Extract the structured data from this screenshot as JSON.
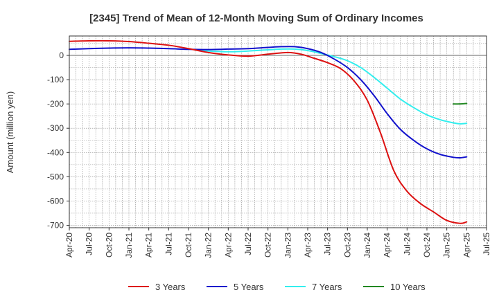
{
  "chart_data": {
    "type": "line",
    "title": "[2345]  Trend of Mean of 12-Month Moving Sum of Ordinary Incomes",
    "xlabel": "",
    "ylabel": "Amount (million yen)",
    "ylim": [
      -710,
      80
    ],
    "yticks": [
      0,
      -100,
      -200,
      -300,
      -400,
      -500,
      -600,
      -700
    ],
    "xlim": [
      0,
      63
    ],
    "xticks": [
      {
        "label": "Apr-20",
        "x": 0
      },
      {
        "label": "Jul-20",
        "x": 3
      },
      {
        "label": "Oct-20",
        "x": 6
      },
      {
        "label": "Jan-21",
        "x": 9
      },
      {
        "label": "Apr-21",
        "x": 12
      },
      {
        "label": "Jul-21",
        "x": 15
      },
      {
        "label": "Oct-21",
        "x": 18
      },
      {
        "label": "Jan-22",
        "x": 21
      },
      {
        "label": "Apr-22",
        "x": 24
      },
      {
        "label": "Jul-22",
        "x": 27
      },
      {
        "label": "Oct-22",
        "x": 30
      },
      {
        "label": "Jan-23",
        "x": 33
      },
      {
        "label": "Apr-23",
        "x": 36
      },
      {
        "label": "Jul-23",
        "x": 39
      },
      {
        "label": "Oct-23",
        "x": 42
      },
      {
        "label": "Jan-24",
        "x": 45
      },
      {
        "label": "Apr-24",
        "x": 48
      },
      {
        "label": "Jul-24",
        "x": 51
      },
      {
        "label": "Oct-24",
        "x": 54
      },
      {
        "label": "Jan-25",
        "x": 57
      },
      {
        "label": "Apr-25",
        "x": 60
      },
      {
        "label": "Jul-25",
        "x": 63
      }
    ],
    "grid": true,
    "legend_position": "bottom",
    "series": [
      {
        "name": "3 Years",
        "color": "#dd1111",
        "points": [
          [
            0,
            58
          ],
          [
            3,
            60
          ],
          [
            6,
            60
          ],
          [
            9,
            57
          ],
          [
            12,
            50
          ],
          [
            15,
            42
          ],
          [
            18,
            28
          ],
          [
            21,
            12
          ],
          [
            24,
            2
          ],
          [
            27,
            -3
          ],
          [
            30,
            5
          ],
          [
            33,
            12
          ],
          [
            35,
            5
          ],
          [
            37,
            -12
          ],
          [
            39,
            -30
          ],
          [
            41,
            -55
          ],
          [
            43,
            -105
          ],
          [
            45,
            -185
          ],
          [
            47,
            -320
          ],
          [
            49,
            -475
          ],
          [
            51,
            -560
          ],
          [
            53,
            -610
          ],
          [
            55,
            -645
          ],
          [
            57,
            -680
          ],
          [
            59,
            -692
          ],
          [
            60,
            -686
          ]
        ]
      },
      {
        "name": "5 Years",
        "color": "#1111cc",
        "points": [
          [
            0,
            25
          ],
          [
            3,
            28
          ],
          [
            6,
            30
          ],
          [
            9,
            31
          ],
          [
            12,
            30
          ],
          [
            15,
            28
          ],
          [
            18,
            25
          ],
          [
            21,
            24
          ],
          [
            24,
            26
          ],
          [
            27,
            28
          ],
          [
            30,
            33
          ],
          [
            32,
            36
          ],
          [
            34,
            36
          ],
          [
            36,
            28
          ],
          [
            38,
            12
          ],
          [
            40,
            -15
          ],
          [
            42,
            -50
          ],
          [
            44,
            -100
          ],
          [
            46,
            -165
          ],
          [
            48,
            -240
          ],
          [
            50,
            -305
          ],
          [
            52,
            -350
          ],
          [
            54,
            -385
          ],
          [
            56,
            -408
          ],
          [
            58,
            -420
          ],
          [
            59,
            -422
          ],
          [
            60,
            -418
          ]
        ]
      },
      {
        "name": "7 Years",
        "color": "#33eeee",
        "points": [
          [
            19,
            22
          ],
          [
            21,
            18
          ],
          [
            24,
            15
          ],
          [
            27,
            18
          ],
          [
            30,
            23
          ],
          [
            32,
            26
          ],
          [
            34,
            26
          ],
          [
            36,
            20
          ],
          [
            38,
            8
          ],
          [
            40,
            -5
          ],
          [
            42,
            -22
          ],
          [
            44,
            -50
          ],
          [
            46,
            -90
          ],
          [
            48,
            -135
          ],
          [
            50,
            -180
          ],
          [
            52,
            -215
          ],
          [
            54,
            -245
          ],
          [
            56,
            -265
          ],
          [
            58,
            -278
          ],
          [
            59,
            -282
          ],
          [
            60,
            -280
          ]
        ]
      },
      {
        "name": "10 Years",
        "color": "#228822",
        "points": [
          [
            58,
            -200
          ],
          [
            59,
            -200
          ],
          [
            60,
            -198
          ]
        ]
      }
    ]
  }
}
